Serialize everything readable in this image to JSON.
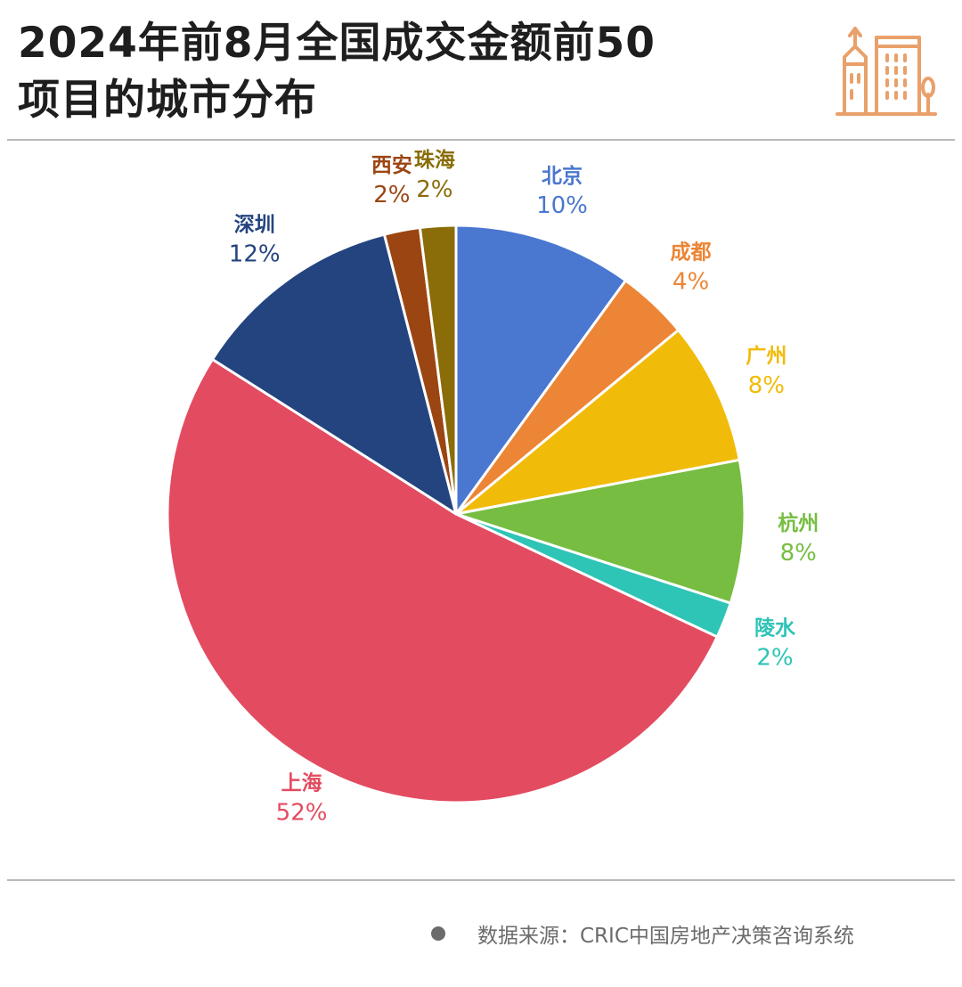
{
  "title": {
    "line1": "2024年前8月全国成交金额前50",
    "line2": "项目的城市分布"
  },
  "icon": "building-icon",
  "icon_color": "#e9a06a",
  "source": "数据来源：CRIC中国房地产决策咨询系统",
  "chart_data": {
    "type": "pie",
    "title": "2024年前8月全国成交金额前50项目的城市分布",
    "start_angle_deg": 0,
    "direction": "clockwise",
    "slices": [
      {
        "name": "北京",
        "value": 10,
        "label": "10%",
        "color": "#4a77d0",
        "label_color": "#4a77d0"
      },
      {
        "name": "成都",
        "value": 4,
        "label": "4%",
        "color": "#ec8535",
        "label_color": "#ec8535"
      },
      {
        "name": "广州",
        "value": 8,
        "label": "8%",
        "color": "#f1bb09",
        "label_color": "#f1bb09"
      },
      {
        "name": "杭州",
        "value": 8,
        "label": "8%",
        "color": "#76bd41",
        "label_color": "#76bd41"
      },
      {
        "name": "陵水",
        "value": 2,
        "label": "2%",
        "color": "#2ec4b6",
        "label_color": "#2ec4b6"
      },
      {
        "name": "上海",
        "value": 52,
        "label": "52%",
        "color": "#e34b61",
        "label_color": "#e34b61"
      },
      {
        "name": "深圳",
        "value": 12,
        "label": "12%",
        "color": "#244480",
        "label_color": "#244480"
      },
      {
        "name": "西安",
        "value": 2,
        "label": "2%",
        "color": "#9b4512",
        "label_color": "#9b4512"
      },
      {
        "name": "珠海",
        "value": 2,
        "label": "2%",
        "color": "#8a6d08",
        "label_color": "#8a6d08"
      }
    ]
  }
}
